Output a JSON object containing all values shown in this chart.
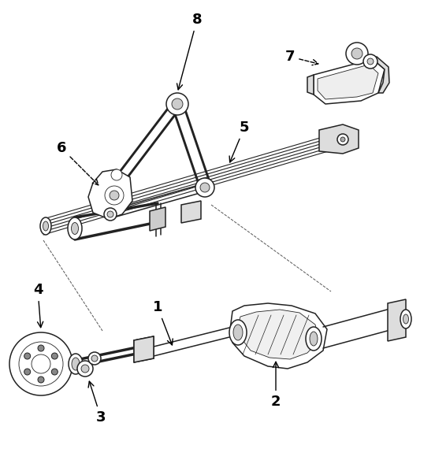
{
  "bg_color": "#ffffff",
  "line_color": "#222222",
  "fig_width": 5.52,
  "fig_height": 5.7,
  "dpi": 100,
  "lw_main": 1.1,
  "lw_thin": 0.6,
  "lw_thick": 1.5,
  "label_fontsize": 13,
  "axle_color": "#cccccc",
  "diff_color": "#dddddd",
  "spring_color": "#e8e8e8"
}
